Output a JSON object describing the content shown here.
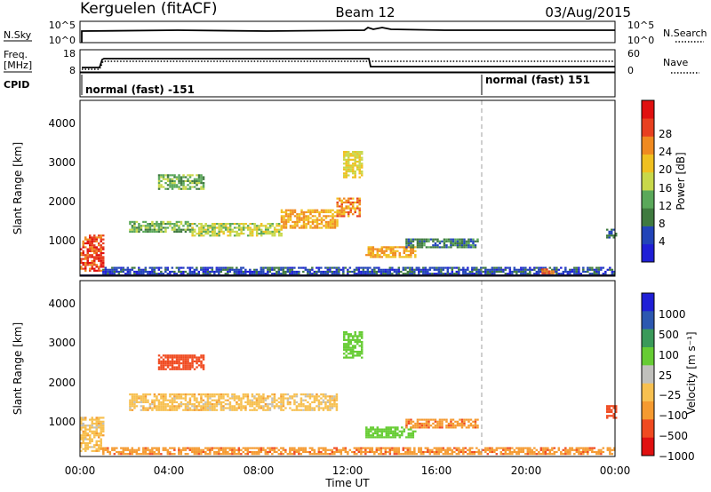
{
  "header": {
    "station": "Kerguelen (fitACF)",
    "beam": "Beam 12",
    "date": "03/Aug/2015"
  },
  "status_panels": {
    "nsky": {
      "label": "N.Sky",
      "ticks": [
        "10^5",
        "10^0"
      ],
      "right_label": "N.Search",
      "right_ticks": [
        "10^5",
        "10^0"
      ]
    },
    "freq": {
      "label_line1": "Freq.",
      "label_line2": "[MHz]",
      "ticks": [
        "18",
        "8"
      ],
      "right_label": "Nave",
      "right_ticks": [
        "60",
        "0"
      ]
    },
    "cpid": {
      "label": "CPID",
      "modes": [
        {
          "text": "normal (fast) -151",
          "start_hour": 0
        },
        {
          "text": "normal (fast) 151",
          "start_hour": 18
        }
      ]
    }
  },
  "colors": {
    "power": [
      "#1f1fd6",
      "#2244b8",
      "#3f7a3f",
      "#5aa85a",
      "#c8d84a",
      "#f0c020",
      "#f08a20",
      "#e84020",
      "#e01010"
    ],
    "velocity": [
      "#e01010",
      "#f04a20",
      "#f59a30",
      "#f7c050",
      "#c0c0bc",
      "#66cc33",
      "#3a9a5a",
      "#2c58b0",
      "#1f1fd6"
    ]
  },
  "chart_data": {
    "type": "heatmap",
    "x_axis": {
      "label": "Time UT",
      "ticks": [
        "00:00",
        "04:00",
        "08:00",
        "12:00",
        "16:00",
        "20:00",
        "00:00"
      ],
      "range_hours": [
        0,
        24
      ]
    },
    "y_axis": {
      "label": "Slant Range [km]",
      "ticks": [
        "1000",
        "2000",
        "3000",
        "4000"
      ],
      "range_km": [
        180,
        4700
      ]
    },
    "panels": [
      {
        "name": "power",
        "colorbar_label": "Power [dB]",
        "colorbar_ticks": [
          "4",
          "8",
          "12",
          "16",
          "20",
          "24",
          "28"
        ],
        "range": [
          0,
          32
        ],
        "regions": [
          {
            "t": [
              0,
              1.0
            ],
            "r": [
              300,
              1250
            ],
            "level": 30
          },
          {
            "t": [
              1.0,
              24
            ],
            "r": [
              230,
              420
            ],
            "level": 6
          },
          {
            "t": [
              2.2,
              5.0
            ],
            "r": [
              1300,
              1600
            ],
            "level": 14
          },
          {
            "t": [
              5.0,
              9.0
            ],
            "r": [
              1200,
              1550
            ],
            "level": 18
          },
          {
            "t": [
              9.0,
              11.5
            ],
            "r": [
              1400,
              1900
            ],
            "level": 24
          },
          {
            "t": [
              11.5,
              12.5
            ],
            "r": [
              1700,
              2200
            ],
            "level": 26
          },
          {
            "t": [
              3.5,
              5.5
            ],
            "r": [
              2400,
              2800
            ],
            "level": 14
          },
          {
            "t": [
              11.8,
              12.6
            ],
            "r": [
              2700,
              3400
            ],
            "level": 20
          },
          {
            "t": [
              12.8,
              15.0
            ],
            "r": [
              650,
              950
            ],
            "level": 24
          },
          {
            "t": [
              14.6,
              17.8
            ],
            "r": [
              900,
              1150
            ],
            "level": 10
          },
          {
            "t": [
              20.7,
              21.2
            ],
            "r": [
              250,
              380
            ],
            "level": 28
          },
          {
            "t": [
              23.6,
              24
            ],
            "r": [
              1150,
              1400
            ],
            "level": 8
          }
        ]
      },
      {
        "name": "velocity",
        "colorbar_label": "Velocity [m s⁻¹]",
        "colorbar_ticks": [
          "1000",
          "500",
          "100",
          "25",
          "−25",
          "−100",
          "−500",
          "−1000"
        ],
        "range": [
          -1000,
          1000
        ],
        "regions": [
          {
            "t": [
              0,
              1.0
            ],
            "r": [
              300,
              1200
            ],
            "level": 0
          },
          {
            "t": [
              1.0,
              24
            ],
            "r": [
              230,
              420
            ],
            "level": -80
          },
          {
            "t": [
              2.2,
              11.5
            ],
            "r": [
              1350,
              1800
            ],
            "level": 0
          },
          {
            "t": [
              3.5,
              5.5
            ],
            "r": [
              2400,
              2800
            ],
            "level": -300
          },
          {
            "t": [
              11.8,
              12.6
            ],
            "r": [
              2700,
              3400
            ],
            "level": 150
          },
          {
            "t": [
              12.8,
              15.0
            ],
            "r": [
              650,
              950
            ],
            "level": 150
          },
          {
            "t": [
              14.6,
              17.8
            ],
            "r": [
              900,
              1150
            ],
            "level": -80
          },
          {
            "t": [
              23.6,
              24
            ],
            "r": [
              1150,
              1500
            ],
            "level": -200
          }
        ]
      }
    ]
  }
}
